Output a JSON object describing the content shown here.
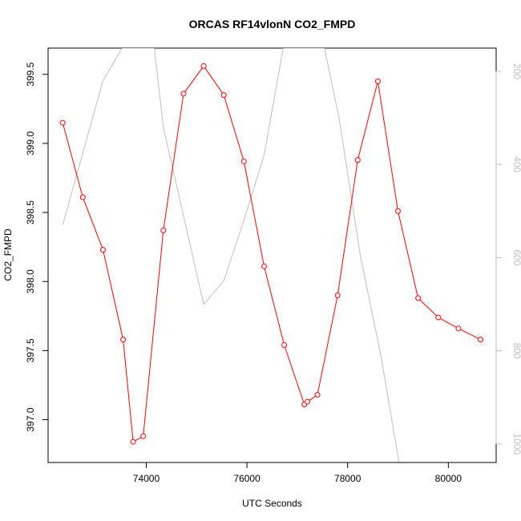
{
  "chart_data": {
    "type": "line",
    "title": "ORCAS RF14vlonN CO2_FMPD",
    "xlabel": "UTC Seconds",
    "ylabel": "CO2_FMPD",
    "xlim": [
      72050,
      80950
    ],
    "ylim": [
      396.69,
      399.69
    ],
    "y2lim": [
      1040,
      150
    ],
    "x_ticks": [
      74000,
      76000,
      78000,
      80000
    ],
    "y_ticks": [
      397.0,
      397.5,
      398.0,
      398.5,
      399.0,
      399.5
    ],
    "y2_ticks": [
      200,
      400,
      600,
      800,
      1000
    ],
    "x_tick_labels": [
      "74000",
      "76000",
      "78000",
      "80000"
    ],
    "y_tick_labels": [
      "397.0",
      "397.5",
      "398.0",
      "398.5",
      "399.0",
      "399.5"
    ],
    "y2_tick_labels": [
      "200",
      "400",
      "600",
      "800",
      "1000"
    ],
    "colors": {
      "co2": "#ff0000",
      "secondary": "#bebebe",
      "axis": "#000000",
      "right_axis": "#bebebe"
    },
    "series": [
      {
        "color": "#ff0000",
        "marker": "open-circle",
        "x": [
          72340,
          72740,
          73140,
          73540,
          73740,
          73940,
          74340,
          74740,
          75140,
          75540,
          75940,
          76340,
          76740,
          77140,
          77200,
          77400,
          77800,
          78200,
          78600,
          79000,
          79400,
          79800,
          80200,
          80640
        ],
        "y": [
          399.15,
          398.61,
          398.23,
          397.58,
          396.84,
          396.88,
          398.37,
          399.36,
          399.56,
          399.35,
          398.87,
          398.11,
          397.54,
          397.11,
          397.13,
          397.18,
          397.9,
          398.88,
          399.45,
          398.51,
          397.88,
          397.74,
          397.66,
          397.58
        ]
      },
      {
        "color": "#bebebe",
        "axis": "right",
        "x": [
          72340,
          73140,
          73520,
          74160,
          74340,
          75140,
          75540,
          75940,
          76340,
          76720,
          77540,
          77830,
          78260,
          78660,
          79020,
          79440,
          80640
        ],
        "y": [
          530,
          220,
          150,
          150,
          320,
          700,
          650,
          520,
          380,
          150,
          150,
          300,
          600,
          810,
          1040,
          1050,
          1050
        ]
      }
    ]
  }
}
